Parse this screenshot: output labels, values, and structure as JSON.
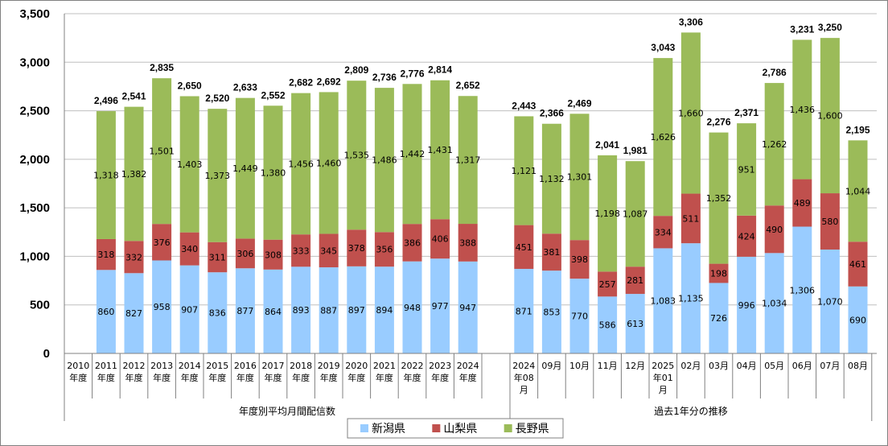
{
  "chart_data": {
    "type": "bar",
    "stacked": true,
    "ylim": [
      0,
      3500
    ],
    "yticks": [
      "0",
      "500",
      "1,000",
      "1,500",
      "2,000",
      "2,500",
      "3,000",
      "3,500"
    ],
    "grid": true,
    "legend_position": "bottom-center",
    "groups": [
      "年度別平均月間配信数",
      "過去1年分の推移"
    ],
    "categories": [
      {
        "label": [
          "2010",
          "年度"
        ],
        "group": 0,
        "totalLabel": ""
      },
      {
        "label": [
          "2011",
          "年度"
        ],
        "group": 0,
        "totalLabel": "2,496"
      },
      {
        "label": [
          "2012",
          "年度"
        ],
        "group": 0,
        "totalLabel": "2,541"
      },
      {
        "label": [
          "2013",
          "年度"
        ],
        "group": 0,
        "totalLabel": "2,835"
      },
      {
        "label": [
          "2014",
          "年度"
        ],
        "group": 0,
        "totalLabel": "2,650"
      },
      {
        "label": [
          "2015",
          "年度"
        ],
        "group": 0,
        "totalLabel": "2,520"
      },
      {
        "label": [
          "2016",
          "年度"
        ],
        "group": 0,
        "totalLabel": "2,633"
      },
      {
        "label": [
          "2017",
          "年度"
        ],
        "group": 0,
        "totalLabel": "2,552"
      },
      {
        "label": [
          "2018",
          "年度"
        ],
        "group": 0,
        "totalLabel": "2,682"
      },
      {
        "label": [
          "2019",
          "年度"
        ],
        "group": 0,
        "totalLabel": "2,692"
      },
      {
        "label": [
          "2020",
          "年度"
        ],
        "group": 0,
        "totalLabel": "2,809"
      },
      {
        "label": [
          "2021",
          "年度"
        ],
        "group": 0,
        "totalLabel": "2,736"
      },
      {
        "label": [
          "2022",
          "年度"
        ],
        "group": 0,
        "totalLabel": "2,776"
      },
      {
        "label": [
          "2023",
          "年度"
        ],
        "group": 0,
        "totalLabel": "2,814"
      },
      {
        "label": [
          "2024",
          "年度"
        ],
        "group": 0,
        "totalLabel": "2,652"
      },
      {
        "label": [
          "2024",
          "年08",
          "月"
        ],
        "group": 1,
        "totalLabel": "2,443"
      },
      {
        "label": [
          "09月"
        ],
        "group": 1,
        "totalLabel": "2,366"
      },
      {
        "label": [
          "10月"
        ],
        "group": 1,
        "totalLabel": "2,469"
      },
      {
        "label": [
          "11月"
        ],
        "group": 1,
        "totalLabel": "2,041"
      },
      {
        "label": [
          "12月"
        ],
        "group": 1,
        "totalLabel": "1,981"
      },
      {
        "label": [
          "2025",
          "年01",
          "月"
        ],
        "group": 1,
        "totalLabel": "3,043"
      },
      {
        "label": [
          "02月"
        ],
        "group": 1,
        "totalLabel": "3,306"
      },
      {
        "label": [
          "03月"
        ],
        "group": 1,
        "totalLabel": "2,276"
      },
      {
        "label": [
          "04月"
        ],
        "group": 1,
        "totalLabel": "2,371"
      },
      {
        "label": [
          "05月"
        ],
        "group": 1,
        "totalLabel": "2,786"
      },
      {
        "label": [
          "06月"
        ],
        "group": 1,
        "totalLabel": "3,231"
      },
      {
        "label": [
          "07月"
        ],
        "group": 1,
        "totalLabel": "3,250"
      },
      {
        "label": [
          "08月"
        ],
        "group": 1,
        "totalLabel": "2,195"
      }
    ],
    "series": [
      {
        "name": "新潟県",
        "color": "#99ccff",
        "values": [
          null,
          860,
          827,
          958,
          907,
          836,
          877,
          864,
          893,
          887,
          897,
          894,
          948,
          977,
          947,
          871,
          853,
          770,
          586,
          613,
          1083,
          1135,
          726,
          996,
          1034,
          1306,
          1070,
          690
        ],
        "labels": [
          "",
          "860",
          "827",
          "958",
          "907",
          "836",
          "877",
          "864",
          "893",
          "887",
          "897",
          "894",
          "948",
          "977",
          "947",
          "871",
          "853",
          "770",
          "586",
          "613",
          "1,083",
          "1,135",
          "726",
          "996",
          "1,034",
          "1,306",
          "1,070",
          "690"
        ]
      },
      {
        "name": "山梨県",
        "color": "#c0504d",
        "values": [
          null,
          318,
          332,
          376,
          340,
          311,
          306,
          308,
          333,
          345,
          378,
          356,
          386,
          406,
          388,
          451,
          381,
          398,
          257,
          281,
          334,
          511,
          198,
          424,
          490,
          489,
          580,
          461
        ],
        "labels": [
          "",
          "318",
          "332",
          "376",
          "340",
          "311",
          "306",
          "308",
          "333",
          "345",
          "378",
          "356",
          "386",
          "406",
          "388",
          "451",
          "381",
          "398",
          "257",
          "281",
          "334",
          "511",
          "198",
          "424",
          "490",
          "489",
          "580",
          "461"
        ]
      },
      {
        "name": "長野県",
        "color": "#9bbb59",
        "values": [
          null,
          1318,
          1382,
          1501,
          1403,
          1373,
          1449,
          1380,
          1456,
          1460,
          1535,
          1486,
          1442,
          1431,
          1317,
          1121,
          1132,
          1301,
          1198,
          1087,
          1626,
          1660,
          1352,
          951,
          1262,
          1436,
          1600,
          1044
        ],
        "labels": [
          "",
          "1,318",
          "1,382",
          "1,501",
          "1,403",
          "1,373",
          "1,449",
          "1,380",
          "1,456",
          "1,460",
          "1,535",
          "1,486",
          "1,442",
          "1,431",
          "1,317",
          "1,121",
          "1,132",
          "1,301",
          "1,198",
          "1,087",
          "1,626",
          "1,660",
          "1,352",
          "951",
          "1,262",
          "1,436",
          "1,600",
          "1,044"
        ]
      }
    ]
  }
}
